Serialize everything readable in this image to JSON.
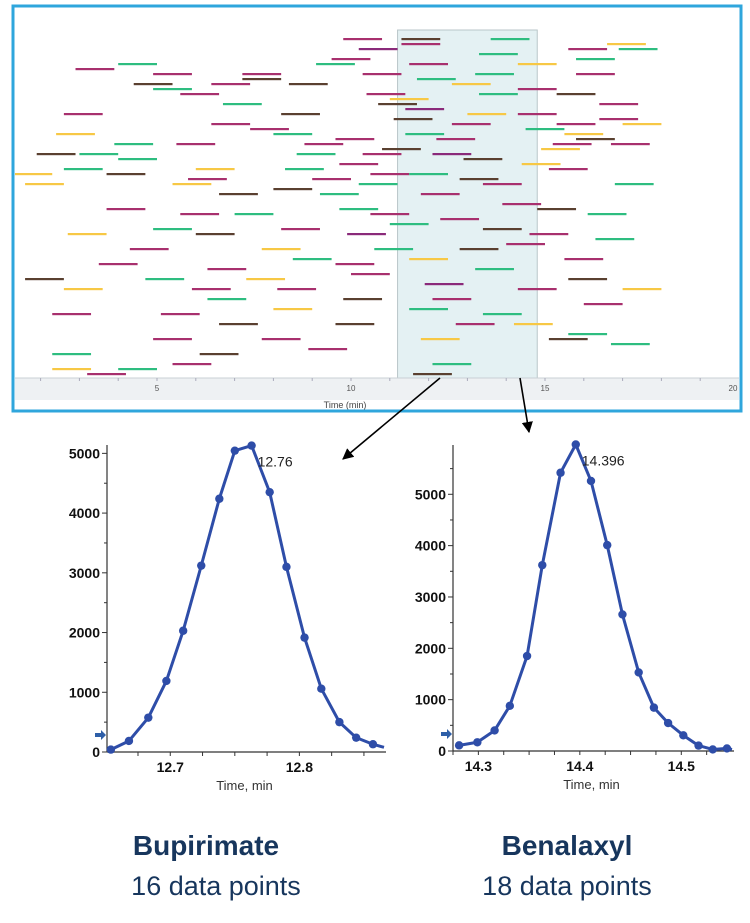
{
  "colors": {
    "border": "#2fa6dc",
    "highlight": "#e4f1f3",
    "line": "#2e4da8",
    "title": "#17365d",
    "bars": [
      "#2ebd80",
      "#a8306e",
      "#5a4030",
      "#f7c845",
      "#8a2a7a"
    ]
  },
  "chart_data": [
    {
      "type": "bar",
      "title": "",
      "xlabel": "Time (min)",
      "xlim": [
        1.3,
        20
      ],
      "xticks": [
        "5",
        "10",
        "15",
        "20"
      ],
      "xtick_values": [
        5,
        10,
        15,
        20
      ],
      "highlight_range": [
        11.2,
        14.8
      ],
      "window_width_min": 1.0,
      "windows_format": [
        "start_min",
        "row",
        "color_index"
      ],
      "windows": [
        [
          9.8,
          1,
          1
        ],
        [
          11.3,
          1,
          2
        ],
        [
          13.6,
          1,
          0
        ],
        [
          16.6,
          2,
          3
        ],
        [
          16.9,
          3,
          0
        ],
        [
          11.3,
          2,
          1
        ],
        [
          13.3,
          4,
          0
        ],
        [
          10.2,
          3,
          4
        ],
        [
          15.6,
          3,
          1
        ],
        [
          9.5,
          5,
          1
        ],
        [
          15.8,
          5,
          0
        ],
        [
          4.0,
          6,
          0
        ],
        [
          9.1,
          6,
          0
        ],
        [
          11.5,
          6,
          1
        ],
        [
          14.3,
          6,
          3
        ],
        [
          2.9,
          7,
          1
        ],
        [
          4.9,
          8,
          1
        ],
        [
          7.2,
          8,
          1
        ],
        [
          10.3,
          8,
          1
        ],
        [
          13.2,
          8,
          0
        ],
        [
          15.8,
          8,
          1
        ],
        [
          7.2,
          9,
          2
        ],
        [
          11.7,
          9,
          0
        ],
        [
          4.4,
          10,
          2
        ],
        [
          4.9,
          11,
          0
        ],
        [
          6.4,
          10,
          1
        ],
        [
          8.4,
          10,
          2
        ],
        [
          12.6,
          10,
          3
        ],
        [
          5.6,
          12,
          1
        ],
        [
          10.4,
          12,
          1
        ],
        [
          11.0,
          13,
          3
        ],
        [
          13.3,
          12,
          0
        ],
        [
          14.3,
          11,
          1
        ],
        [
          15.3,
          12,
          2
        ],
        [
          6.7,
          14,
          0
        ],
        [
          10.7,
          14,
          2
        ],
        [
          11.4,
          15,
          4
        ],
        [
          16.4,
          14,
          1
        ],
        [
          2.6,
          16,
          1
        ],
        [
          8.2,
          16,
          2
        ],
        [
          11.1,
          17,
          2
        ],
        [
          13.0,
          16,
          3
        ],
        [
          14.3,
          16,
          1
        ],
        [
          16.4,
          17,
          1
        ],
        [
          6.4,
          18,
          1
        ],
        [
          12.6,
          18,
          1
        ],
        [
          15.3,
          18,
          1
        ],
        [
          17.0,
          18,
          3
        ],
        [
          7.4,
          19,
          1
        ],
        [
          11.4,
          20,
          0
        ],
        [
          14.5,
          19,
          0
        ],
        [
          15.5,
          20,
          3
        ],
        [
          2.4,
          20,
          3
        ],
        [
          8.0,
          20,
          0
        ],
        [
          9.6,
          21,
          1
        ],
        [
          12.2,
          21,
          1
        ],
        [
          15.2,
          22,
          1
        ],
        [
          15.8,
          21,
          2
        ],
        [
          3.9,
          22,
          0
        ],
        [
          5.5,
          22,
          1
        ],
        [
          8.8,
          22,
          1
        ],
        [
          10.8,
          23,
          2
        ],
        [
          14.9,
          23,
          3
        ],
        [
          16.7,
          22,
          1
        ],
        [
          1.9,
          24,
          2
        ],
        [
          3.0,
          24,
          0
        ],
        [
          8.6,
          24,
          0
        ],
        [
          10.3,
          24,
          1
        ],
        [
          12.1,
          24,
          4
        ],
        [
          4.0,
          25,
          0
        ],
        [
          9.7,
          26,
          1
        ],
        [
          12.9,
          25,
          2
        ],
        [
          14.4,
          26,
          3
        ],
        [
          2.6,
          27,
          0
        ],
        [
          6.0,
          27,
          3
        ],
        [
          8.3,
          27,
          0
        ],
        [
          10.5,
          28,
          1
        ],
        [
          11.5,
          28,
          0
        ],
        [
          15.1,
          27,
          1
        ],
        [
          1.3,
          28,
          3
        ],
        [
          3.7,
          28,
          2
        ],
        [
          5.8,
          29,
          1
        ],
        [
          9.0,
          29,
          1
        ],
        [
          12.8,
          29,
          2
        ],
        [
          1.6,
          30,
          3
        ],
        [
          5.4,
          30,
          3
        ],
        [
          8.0,
          31,
          2
        ],
        [
          10.2,
          30,
          0
        ],
        [
          13.4,
          30,
          1
        ],
        [
          16.8,
          30,
          0
        ],
        [
          6.6,
          32,
          2
        ],
        [
          9.2,
          32,
          0
        ],
        [
          11.8,
          32,
          1
        ],
        [
          3.7,
          35,
          1
        ],
        [
          9.7,
          35,
          0
        ],
        [
          13.9,
          34,
          1
        ],
        [
          14.8,
          35,
          2
        ],
        [
          5.6,
          36,
          1
        ],
        [
          7.0,
          36,
          0
        ],
        [
          10.5,
          36,
          1
        ],
        [
          12.3,
          37,
          1
        ],
        [
          16.1,
          36,
          0
        ],
        [
          4.9,
          39,
          0
        ],
        [
          8.2,
          39,
          1
        ],
        [
          11.0,
          38,
          0
        ],
        [
          13.4,
          39,
          2
        ],
        [
          2.7,
          40,
          3
        ],
        [
          6.0,
          40,
          2
        ],
        [
          9.9,
          40,
          4
        ],
        [
          14.6,
          40,
          1
        ],
        [
          16.3,
          41,
          0
        ],
        [
          4.3,
          43,
          1
        ],
        [
          7.7,
          43,
          3
        ],
        [
          10.6,
          43,
          0
        ],
        [
          12.8,
          43,
          2
        ],
        [
          14.0,
          42,
          1
        ],
        [
          8.5,
          45,
          0
        ],
        [
          11.5,
          45,
          3
        ],
        [
          15.5,
          45,
          1
        ],
        [
          3.5,
          46,
          1
        ],
        [
          6.3,
          47,
          1
        ],
        [
          9.6,
          46,
          1
        ],
        [
          13.2,
          47,
          0
        ],
        [
          1.6,
          49,
          2
        ],
        [
          4.7,
          49,
          0
        ],
        [
          7.3,
          49,
          3
        ],
        [
          10.0,
          48,
          1
        ],
        [
          15.6,
          49,
          2
        ],
        [
          2.6,
          51,
          3
        ],
        [
          5.9,
          51,
          1
        ],
        [
          8.1,
          51,
          1
        ],
        [
          11.9,
          50,
          4
        ],
        [
          14.3,
          51,
          1
        ],
        [
          17.0,
          51,
          3
        ],
        [
          6.3,
          53,
          0
        ],
        [
          9.8,
          53,
          2
        ],
        [
          12.1,
          53,
          1
        ],
        [
          16.0,
          54,
          1
        ],
        [
          2.3,
          56,
          1
        ],
        [
          5.1,
          56,
          1
        ],
        [
          8.0,
          55,
          3
        ],
        [
          11.5,
          55,
          0
        ],
        [
          13.4,
          56,
          0
        ],
        [
          6.6,
          58,
          2
        ],
        [
          9.6,
          58,
          2
        ],
        [
          12.7,
          58,
          1
        ],
        [
          14.2,
          58,
          3
        ],
        [
          15.6,
          60,
          0
        ],
        [
          4.9,
          61,
          1
        ],
        [
          7.7,
          61,
          1
        ],
        [
          11.8,
          61,
          3
        ],
        [
          15.1,
          61,
          2
        ],
        [
          16.7,
          62,
          0
        ],
        [
          2.3,
          64,
          0
        ],
        [
          6.1,
          64,
          2
        ],
        [
          12.1,
          66,
          0
        ],
        [
          8.9,
          63,
          1
        ],
        [
          11.6,
          68,
          2
        ],
        [
          13.2,
          69,
          0
        ],
        [
          2.3,
          67,
          3
        ],
        [
          3.2,
          68,
          1
        ],
        [
          4.0,
          67,
          0
        ],
        [
          5.4,
          66,
          1
        ]
      ]
    },
    {
      "type": "line",
      "compound": "Bupirimate",
      "caption": "16 data points",
      "xlabel": "Time, min",
      "ylabel": "",
      "xlim": [
        12.651,
        12.864
      ],
      "ylim": [
        0,
        5140
      ],
      "xticks": [
        "12.7",
        "12.8"
      ],
      "xtick_values": [
        12.7,
        12.8
      ],
      "yticks": [
        "0",
        "1000",
        "2000",
        "3000",
        "4000",
        "5000"
      ],
      "ytick_values": [
        0,
        1000,
        2000,
        3000,
        4000,
        5000
      ],
      "peak_label": "12.76",
      "x": [
        12.654,
        12.668,
        12.683,
        12.697,
        12.71,
        12.724,
        12.738,
        12.75,
        12.763,
        12.777,
        12.79,
        12.804,
        12.817,
        12.831,
        12.844,
        12.857
      ],
      "y": [
        40,
        185,
        575,
        1190,
        2030,
        3120,
        4240,
        5045,
        5130,
        4350,
        3100,
        1915,
        1060,
        500,
        240,
        130
      ]
    },
    {
      "type": "line",
      "compound": "Benalaxyl",
      "caption": "18 data points",
      "xlabel": "Time, min",
      "ylabel": "",
      "xlim": [
        14.275,
        14.548
      ],
      "ylim": [
        0,
        5960
      ],
      "xticks": [
        "14.3",
        "14.4",
        "14.5"
      ],
      "xtick_values": [
        14.3,
        14.4,
        14.5
      ],
      "yticks": [
        "0",
        "1000",
        "2000",
        "3000",
        "4000",
        "5000"
      ],
      "ytick_values": [
        0,
        1000,
        2000,
        3000,
        4000,
        5000
      ],
      "peak_label": "14.396",
      "x": [
        14.281,
        14.299,
        14.316,
        14.331,
        14.348,
        14.363,
        14.381,
        14.396,
        14.411,
        14.427,
        14.442,
        14.458,
        14.473,
        14.487,
        14.502,
        14.517,
        14.531,
        14.545
      ],
      "y": [
        110,
        170,
        400,
        880,
        1850,
        3620,
        5420,
        5970,
        5260,
        4010,
        2660,
        1530,
        845,
        545,
        305,
        105,
        30,
        50
      ]
    }
  ]
}
